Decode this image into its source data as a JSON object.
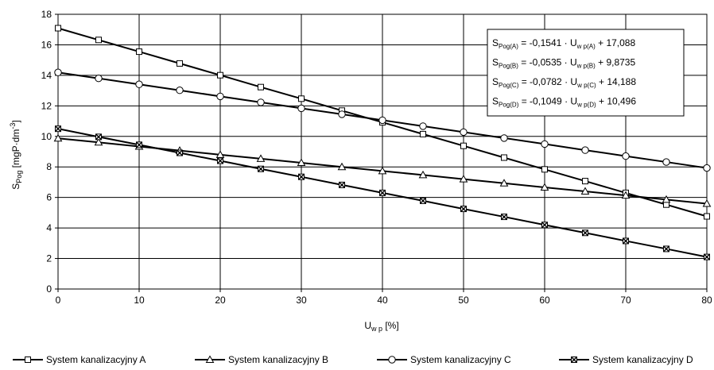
{
  "chart_data": {
    "type": "line",
    "title": "",
    "ylabel": {
      "main": "S",
      "sub": "Pog",
      "unit": " [mgP·dm",
      "sup": "-3",
      "close": "]"
    },
    "xlabel": {
      "main": "U",
      "sub": "w p",
      "unit": " [%]"
    },
    "xlim": [
      0,
      80
    ],
    "ylim": [
      0,
      18
    ],
    "xticks": [
      0,
      10,
      20,
      30,
      40,
      50,
      60,
      70,
      80
    ],
    "yticks": [
      0,
      2,
      4,
      6,
      8,
      10,
      12,
      14,
      16,
      18
    ],
    "grid": true,
    "legend_position": "bottom",
    "x": [
      0,
      5,
      10,
      15,
      20,
      25,
      30,
      35,
      40,
      45,
      50,
      55,
      60,
      65,
      70,
      75,
      80
    ],
    "series": [
      {
        "name": "System kanalizacyjny A",
        "marker": "square",
        "values": [
          17.09,
          16.32,
          15.55,
          14.78,
          14.01,
          13.23,
          12.47,
          11.69,
          10.92,
          10.15,
          9.38,
          8.61,
          7.84,
          7.07,
          6.3,
          5.53,
          4.76
        ]
      },
      {
        "name": "System kanalizacyjny B",
        "marker": "triangle",
        "values": [
          9.87,
          9.61,
          9.34,
          9.07,
          8.8,
          8.54,
          8.27,
          8.0,
          7.73,
          7.47,
          7.2,
          6.93,
          6.66,
          6.4,
          6.13,
          5.86,
          5.59
        ]
      },
      {
        "name": "System kanalizacyjny C",
        "marker": "circle",
        "values": [
          14.19,
          13.8,
          13.41,
          13.02,
          12.62,
          12.23,
          11.84,
          11.45,
          11.06,
          10.67,
          10.28,
          9.89,
          9.5,
          9.1,
          8.71,
          8.32,
          7.93
        ]
      },
      {
        "name": "System kanalizacyjny D",
        "marker": "xbox",
        "values": [
          10.5,
          9.97,
          9.45,
          8.92,
          8.4,
          7.87,
          7.35,
          6.82,
          6.3,
          5.78,
          5.25,
          4.73,
          4.2,
          3.68,
          3.15,
          2.63,
          2.1
        ]
      }
    ],
    "equations": [
      {
        "s": "S",
        "s_sub": "Pog(A)",
        "mid": " = -0,1541 · U",
        "u_sub": "w p(A)",
        "tail": " + 17,088"
      },
      {
        "s": "S",
        "s_sub": "Pog(B)",
        "mid": " = -0,0535 · U",
        "u_sub": "w p(B)",
        "tail": " + 9,8735"
      },
      {
        "s": "S",
        "s_sub": "Pog(C)",
        "mid": " = -0,0782 · U",
        "u_sub": "w p(C)",
        "tail": " + 14,188"
      },
      {
        "s": "S",
        "s_sub": "Pog(D)",
        "mid": " = -0,1049 · U",
        "u_sub": "w p(D)",
        "tail": " + 10,496"
      }
    ]
  }
}
